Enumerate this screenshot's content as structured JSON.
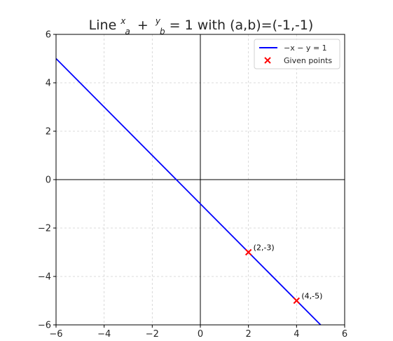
{
  "chart_data": {
    "type": "line",
    "title_prefix": "Line ",
    "title_suffix": " = 1 with (a,b)=(-1,-1)",
    "title_frac_x_num": "x",
    "title_frac_x_den": "a",
    "title_plus": "+",
    "title_frac_y_num": "y",
    "title_frac_y_den": "b",
    "xlabel": "",
    "ylabel": "",
    "xlim": [
      -6,
      6
    ],
    "ylim": [
      -6,
      6
    ],
    "xticks": [
      -6,
      -4,
      -2,
      0,
      2,
      4,
      6
    ],
    "yticks": [
      -6,
      -4,
      -2,
      0,
      2,
      4,
      6
    ],
    "grid": true,
    "legend_position": "top-right",
    "series": [
      {
        "name": "−x − y = 1",
        "kind": "line",
        "color": "#0000ff",
        "x": [
          -6,
          5
        ],
        "y": [
          5,
          -6
        ]
      },
      {
        "name": "Given points",
        "kind": "scatter",
        "marker": "x",
        "color": "#ff0000",
        "x": [
          2,
          4
        ],
        "y": [
          -3,
          -5
        ],
        "labels": [
          "(2,-3)",
          "(4,-5)"
        ]
      }
    ]
  }
}
